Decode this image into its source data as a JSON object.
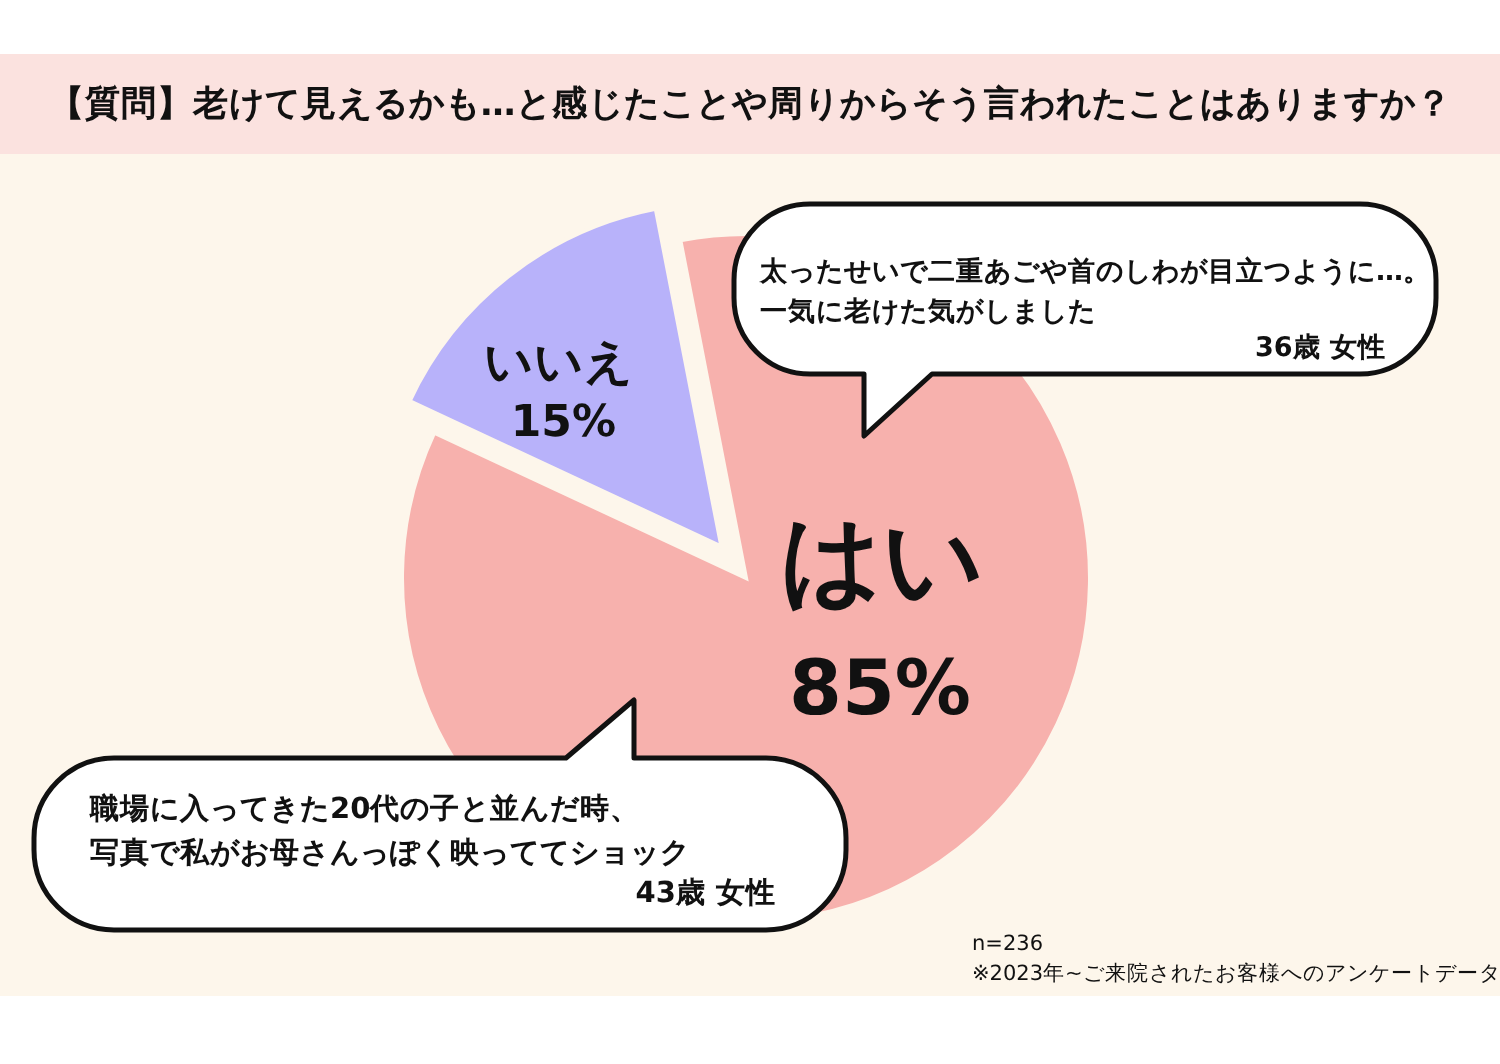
{
  "chart_data": {
    "type": "pie",
    "title": "【質問】老けて見えるかも…と感じたことや周りからそう言われたことはありますか？",
    "categories": [
      "はい",
      "いいえ"
    ],
    "values": [
      85,
      15
    ],
    "colors": [
      "#f7b1ad",
      "#b8b2fa"
    ],
    "value_labels": [
      "85%",
      "15%"
    ],
    "annotations": [
      "太ったせいで二重あごや首のしわが目立つように…。",
      "一気に老けた気がしました",
      "36歳 女性",
      "職場に入ってきた20代の子と並んだ時、",
      "写真で私がお母さんっぽく映っててショック",
      "43歳 女性",
      "n=236",
      "※2023年~ご来院されたお客様へのアンケートデータ"
    ]
  }
}
